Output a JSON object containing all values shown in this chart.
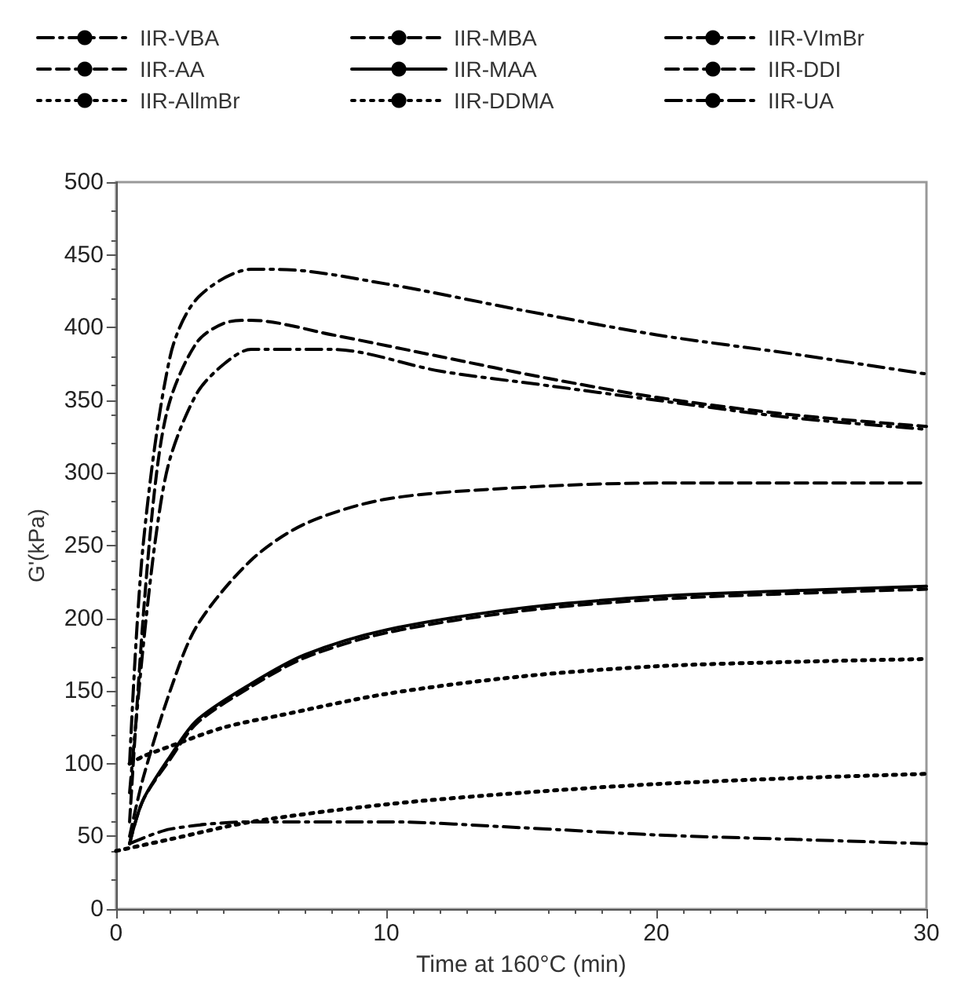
{
  "chart_data": {
    "type": "line",
    "xlabel": "Time at 160°C (min)",
    "ylabel": "G'(kPa)",
    "xlim": [
      0,
      30
    ],
    "xticks": [
      0,
      10,
      20,
      30
    ],
    "ylim": [
      0,
      500
    ],
    "yticks": [
      0,
      50,
      100,
      150,
      200,
      250,
      300,
      350,
      400,
      450,
      500
    ],
    "grid": false,
    "legend": "top",
    "marker": "none",
    "series": [
      {
        "name": "IIR-VBA",
        "color": "#000000",
        "line_style": "dashdot",
        "x": [
          0.5,
          1,
          2,
          3,
          5,
          6,
          10,
          15,
          20,
          25,
          30
        ],
        "values": [
          100,
          250,
          380,
          420,
          440,
          440,
          430,
          412,
          395,
          382,
          368
        ]
      },
      {
        "name": "IIR-MBA",
        "color": "#000000",
        "line_style": "dashed",
        "x": [
          0.5,
          1,
          1.5,
          2,
          3,
          4,
          5,
          8,
          12,
          16,
          20,
          25,
          30
        ],
        "values": [
          60,
          200,
          300,
          350,
          390,
          403,
          405,
          395,
          380,
          365,
          352,
          340,
          332
        ]
      },
      {
        "name": "IIR-VImBr",
        "color": "#000000",
        "line_style": "dashdot",
        "x": [
          0.5,
          1,
          1.5,
          2,
          3,
          4,
          5,
          8,
          12,
          16,
          20,
          25,
          30
        ],
        "values": [
          80,
          180,
          260,
          310,
          355,
          375,
          385,
          385,
          370,
          360,
          350,
          338,
          330
        ]
      },
      {
        "name": "IIR-AA",
        "color": "#000000",
        "line_style": "dashed",
        "x": [
          0.5,
          1,
          2,
          3,
          5,
          7,
          10,
          15,
          20,
          30
        ],
        "values": [
          50,
          90,
          150,
          195,
          240,
          265,
          282,
          290,
          293,
          293
        ]
      },
      {
        "name": "IIR-MAA",
        "color": "#000000",
        "line_style": "solid",
        "x": [
          0.5,
          1,
          2,
          3,
          5,
          7,
          10,
          15,
          20,
          25,
          30
        ],
        "values": [
          45,
          75,
          105,
          130,
          155,
          175,
          192,
          207,
          215,
          219,
          222
        ]
      },
      {
        "name": "IIR-DDI",
        "color": "#000000",
        "line_style": "dashed",
        "x": [
          0.5,
          1,
          2,
          3,
          5,
          7,
          10,
          15,
          20,
          25,
          30
        ],
        "values": [
          45,
          75,
          103,
          128,
          153,
          173,
          190,
          205,
          213,
          217,
          220
        ]
      },
      {
        "name": "IIR-AllmBr",
        "color": "#000000",
        "line_style": "dotted",
        "x": [
          0.5,
          1,
          2,
          4,
          6,
          10,
          15,
          20,
          25,
          30
        ],
        "values": [
          100,
          105,
          112,
          125,
          133,
          148,
          160,
          167,
          170,
          172
        ]
      },
      {
        "name": "IIR-DDMA",
        "color": "#000000",
        "line_style": "dotted",
        "x": [
          0,
          2,
          5,
          10,
          15,
          20,
          25,
          30
        ],
        "values": [
          40,
          48,
          60,
          72,
          80,
          86,
          90,
          93
        ]
      },
      {
        "name": "IIR-UA",
        "color": "#000000",
        "line_style": "dashdot",
        "x": [
          0.5,
          2,
          5,
          10,
          15,
          20,
          25,
          30
        ],
        "values": [
          45,
          55,
          60,
          60,
          56,
          51,
          48,
          45
        ]
      }
    ]
  }
}
